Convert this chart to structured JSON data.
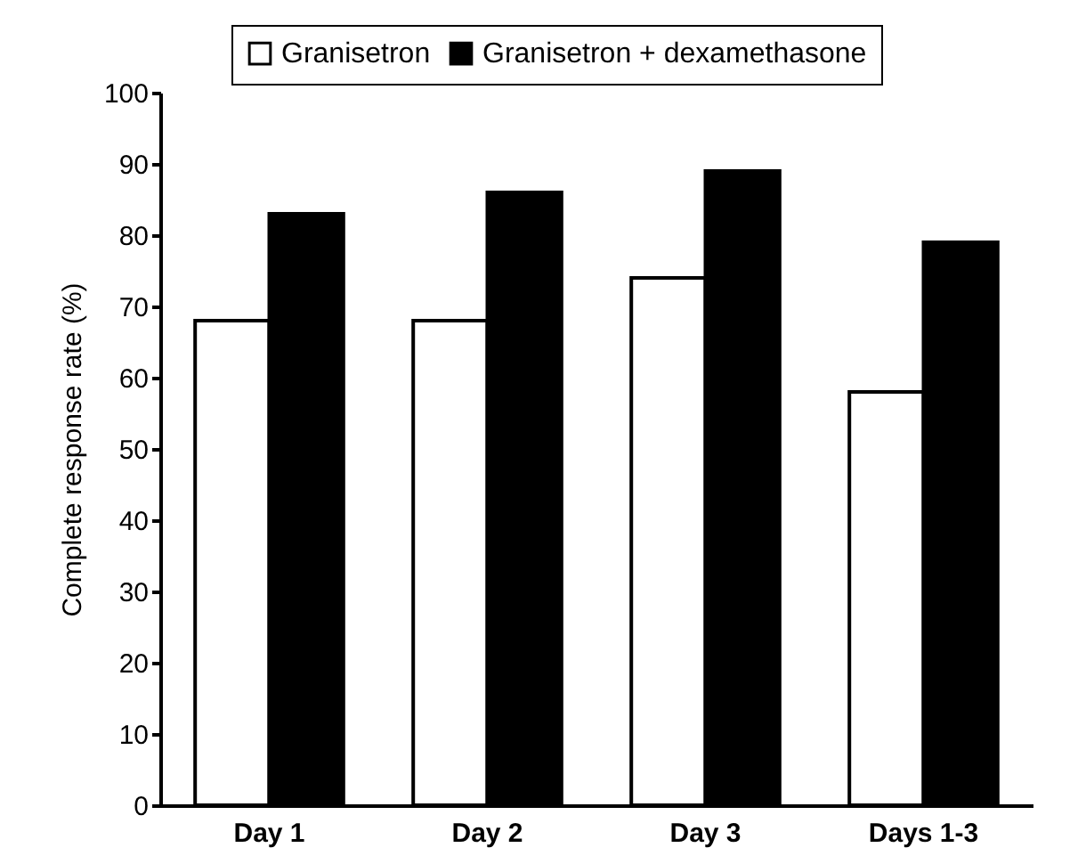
{
  "chart_data": {
    "type": "bar",
    "ylabel": "Complete response rate (%)",
    "categories": [
      "Day 1",
      "Day 2",
      "Day 3",
      "Days 1-3"
    ],
    "series": [
      {
        "name": "Granisetron",
        "color": "#ffffff",
        "values": [
          68,
          68,
          74,
          58
        ]
      },
      {
        "name": "Granisetron + dexamethasone",
        "color": "#000000",
        "values": [
          83,
          86,
          89,
          79
        ]
      }
    ],
    "ylim": [
      0,
      100
    ],
    "yticks": [
      0,
      10,
      20,
      30,
      40,
      50,
      60,
      70,
      80,
      90,
      100
    ],
    "grid": false,
    "legend": "top right"
  }
}
